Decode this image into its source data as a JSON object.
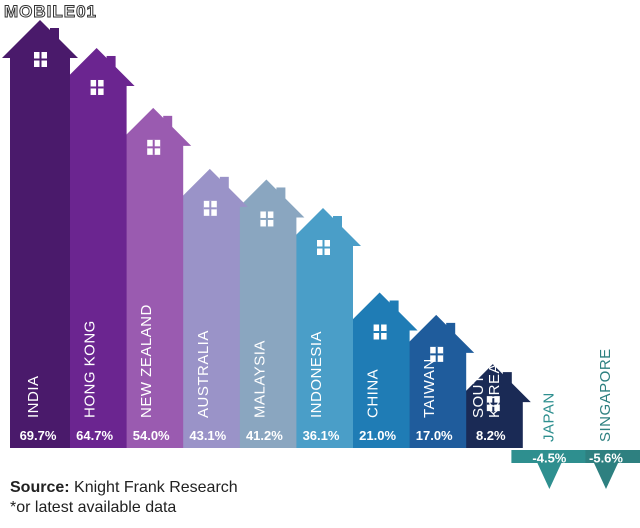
{
  "watermark": "MOBILE01",
  "source": {
    "label": "Source:",
    "text": "Knight Frank Research"
  },
  "note": "*or latest available data",
  "chart_data": {
    "type": "bar",
    "title": "",
    "xlabel": "",
    "ylabel": "",
    "categories": [
      "INDIA",
      "HONG KONG",
      "NEW ZEALAND",
      "AUSTRALIA",
      "MALAYSIA",
      "INDONESIA",
      "CHINA",
      "TAIWAN",
      "SOUTH KOREA",
      "JAPAN",
      "SINGAPORE"
    ],
    "category_lines": [
      [
        "INDIA"
      ],
      [
        "HONG KONG"
      ],
      [
        "NEW ZEALAND"
      ],
      [
        "AUSTRALIA"
      ],
      [
        "MALAYSIA"
      ],
      [
        "INDONESIA"
      ],
      [
        "CHINA"
      ],
      [
        "TAIWAN"
      ],
      [
        "SOUTH",
        "KOREA"
      ],
      [
        "JAPAN"
      ],
      [
        "SINGAPORE"
      ]
    ],
    "values": [
      69.7,
      64.7,
      54.0,
      43.1,
      41.2,
      36.1,
      21.0,
      17.0,
      8.2,
      -4.5,
      -5.6
    ],
    "value_labels": [
      "69.7%",
      "64.7%",
      "54.0%",
      "43.1%",
      "41.2%",
      "36.1%",
      "21.0%",
      "17.0%",
      "8.2%",
      "-4.5%",
      "-5.6%"
    ],
    "colors": [
      "#4a1a6b",
      "#6b2590",
      "#9a5bb0",
      "#9a93c8",
      "#8aa6c0",
      "#4a9ec8",
      "#1f7cb5",
      "#1f5c9c",
      "#1a2a55",
      "#2e8f8f",
      "#2e8080"
    ],
    "grid": false,
    "legend": "none"
  }
}
